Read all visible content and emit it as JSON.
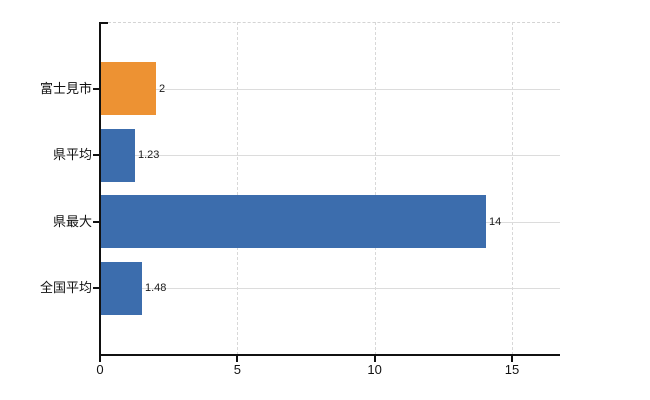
{
  "chart_data": {
    "type": "bar",
    "orientation": "horizontal",
    "title": "",
    "xlabel": "",
    "ylabel": "",
    "categories": [
      "富士見市",
      "県平均",
      "県最大",
      "全国平均"
    ],
    "values": [
      2,
      1.23,
      14,
      1.48
    ],
    "value_labels": [
      "2",
      "1.23",
      "14",
      "1.48"
    ],
    "bar_colors": [
      "#ed9233",
      "#3c6dad",
      "#3c6dad",
      "#3c6dad"
    ],
    "x_ticks": [
      0,
      5,
      10,
      15
    ],
    "x_tick_labels": [
      "0",
      "5",
      "10",
      "15"
    ],
    "xlim": [
      0,
      16.75
    ],
    "grid": "vertical dashed gridlines at x ticks; horizontal solid gridlines at category centers; dashed top plot border",
    "legend": "none"
  },
  "colors": {
    "background": "#ffffff",
    "axis": "#111111",
    "h_gridline": "#dcdcdc",
    "v_gridline": "#d8d8d8",
    "top_border": "#d4d4d4",
    "bar_orange": "#ed9233",
    "bar_blue": "#3c6dad",
    "label_text": "#111111",
    "value_text": "#1a1a1a"
  }
}
